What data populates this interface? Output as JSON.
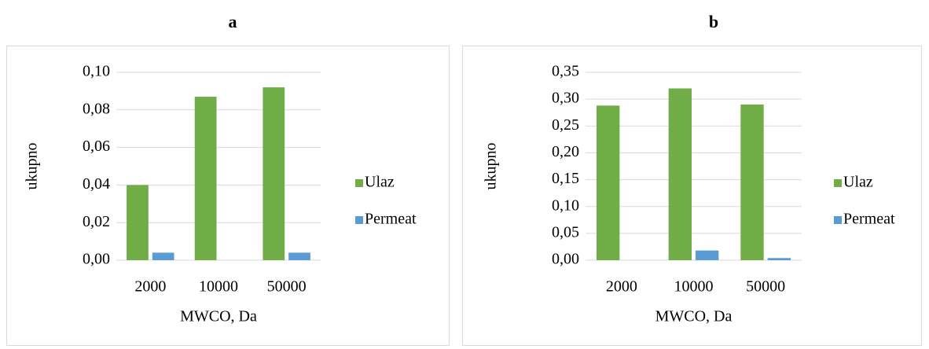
{
  "chart_data": [
    {
      "type": "bar",
      "title": "a",
      "ylabel": "ukupno",
      "xlabel": "MWCO, Da",
      "categories": [
        "2000",
        "10000",
        "50000"
      ],
      "series": [
        {
          "name": "Ulaz",
          "color": "#70ad47",
          "values": [
            0.04,
            0.087,
            0.092
          ]
        },
        {
          "name": "Permeat",
          "color": "#5b9bd5",
          "values": [
            0.004,
            0,
            0.004
          ]
        }
      ],
      "ylim": [
        0,
        0.1
      ],
      "yticks": [
        {
          "value": 0,
          "label": "0,00"
        },
        {
          "value": 0.02,
          "label": "0,02"
        },
        {
          "value": 0.04,
          "label": "0,04"
        },
        {
          "value": 0.06,
          "label": "0,06"
        },
        {
          "value": 0.08,
          "label": "0,08"
        },
        {
          "value": 0.1,
          "label": "0,10"
        }
      ],
      "grid": true,
      "legend": "right"
    },
    {
      "type": "bar",
      "title": "b",
      "ylabel": "ukupno",
      "xlabel": "MWCO, Da",
      "categories": [
        "2000",
        "10000",
        "50000"
      ],
      "series": [
        {
          "name": "Ulaz",
          "color": "#70ad47",
          "values": [
            0.288,
            0.32,
            0.29
          ]
        },
        {
          "name": "Permeat",
          "color": "#5b9bd5",
          "values": [
            0,
            0.018,
            0.004
          ]
        }
      ],
      "ylim": [
        0,
        0.35
      ],
      "yticks": [
        {
          "value": 0,
          "label": "0,00"
        },
        {
          "value": 0.05,
          "label": "0,05"
        },
        {
          "value": 0.1,
          "label": "0,10"
        },
        {
          "value": 0.15,
          "label": "0,15"
        },
        {
          "value": 0.2,
          "label": "0,20"
        },
        {
          "value": 0.25,
          "label": "0,25"
        },
        {
          "value": 0.3,
          "label": "0,30"
        },
        {
          "value": 0.35,
          "label": "0,35"
        }
      ],
      "grid": true,
      "legend": "right"
    }
  ]
}
